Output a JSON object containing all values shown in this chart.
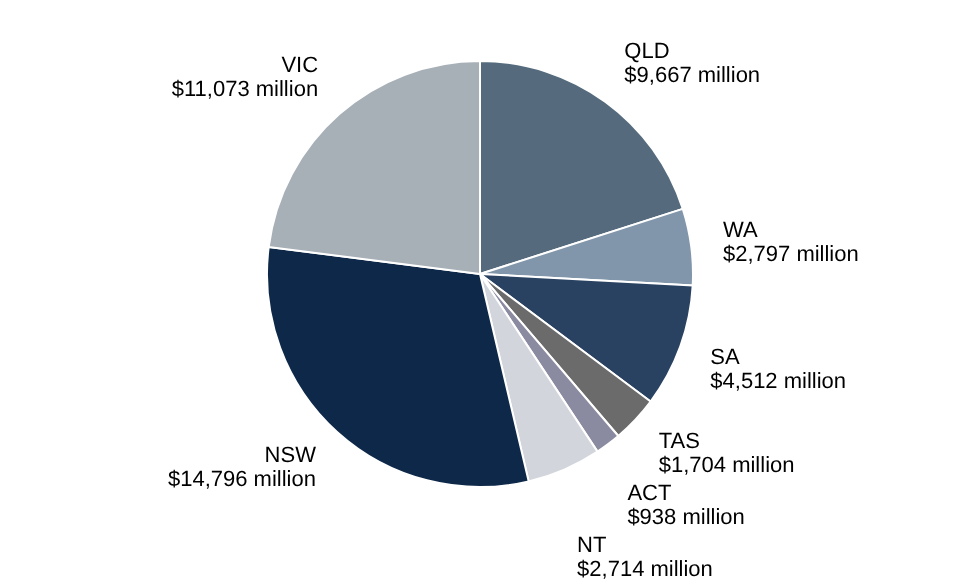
{
  "chart_data": {
    "type": "pie",
    "categories": [
      "QLD",
      "WA",
      "SA",
      "TAS",
      "ACT",
      "NT",
      "NSW",
      "VIC"
    ],
    "values": [
      9667,
      2797,
      4512,
      1704,
      938,
      2714,
      14796,
      11073
    ],
    "value_labels": [
      "$9,667 million",
      "$2,797 million",
      "$4,512 million",
      "$1,704 million",
      "$938 million",
      "$2,714 million",
      "$14,796 million",
      "$11,073 million"
    ],
    "colors": [
      "#556b7d",
      "#8196aa",
      "#2a4262",
      "#6b6b6b",
      "#8a8aa0",
      "#d2d5dc",
      "#0d2848",
      "#a7afb7"
    ],
    "legend": false
  }
}
